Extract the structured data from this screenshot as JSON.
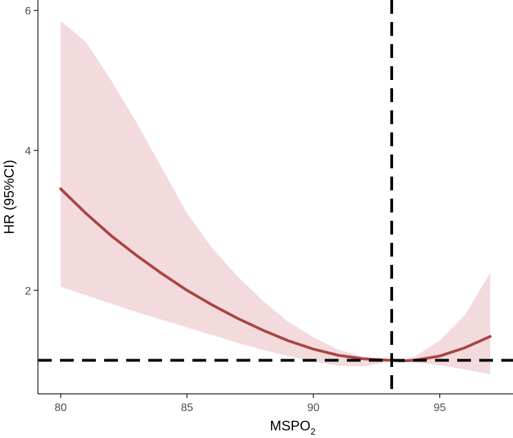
{
  "chart_data": {
    "type": "line",
    "xlabel": "MSPO",
    "xlabel_subscript": "2",
    "ylabel": "HR (95%CI)",
    "xlim": [
      79.1,
      97.9
    ],
    "ylim": [
      0.52,
      6.15
    ],
    "x_ticks": [
      80,
      85,
      90,
      95
    ],
    "x_tick_labels": [
      "80",
      "85",
      "90",
      "95"
    ],
    "y_ticks": [
      2,
      4,
      6
    ],
    "y_tick_labels": [
      "2",
      "4",
      "6"
    ],
    "grid": false,
    "reference_lines": {
      "vertical_x": 93.1,
      "horizontal_y": 1.0,
      "style": "dashed"
    },
    "series": [
      {
        "x": [
          80,
          81,
          82,
          83,
          84,
          85,
          86,
          87,
          88,
          89,
          90,
          91,
          92,
          93,
          93.5,
          94,
          95,
          96,
          97
        ],
        "y": [
          3.45,
          3.1,
          2.78,
          2.5,
          2.24,
          2.0,
          1.79,
          1.6,
          1.43,
          1.28,
          1.16,
          1.07,
          1.02,
          1.0,
          0.99,
          1.0,
          1.06,
          1.18,
          1.34
        ],
        "lower": [
          2.05,
          1.93,
          1.81,
          1.69,
          1.58,
          1.47,
          1.36,
          1.25,
          1.15,
          1.06,
          0.98,
          0.92,
          0.91,
          0.98,
          0.99,
          0.97,
          0.93,
          0.87,
          0.8
        ],
        "upper": [
          5.85,
          5.55,
          5.0,
          4.4,
          3.75,
          3.1,
          2.6,
          2.2,
          1.85,
          1.55,
          1.33,
          1.15,
          1.05,
          1.01,
          1.0,
          1.05,
          1.28,
          1.65,
          2.25
        ]
      }
    ],
    "colors": {
      "line": "#a94442",
      "band": "#f2dadd",
      "reference": "#000000",
      "axis": "#333333"
    }
  }
}
